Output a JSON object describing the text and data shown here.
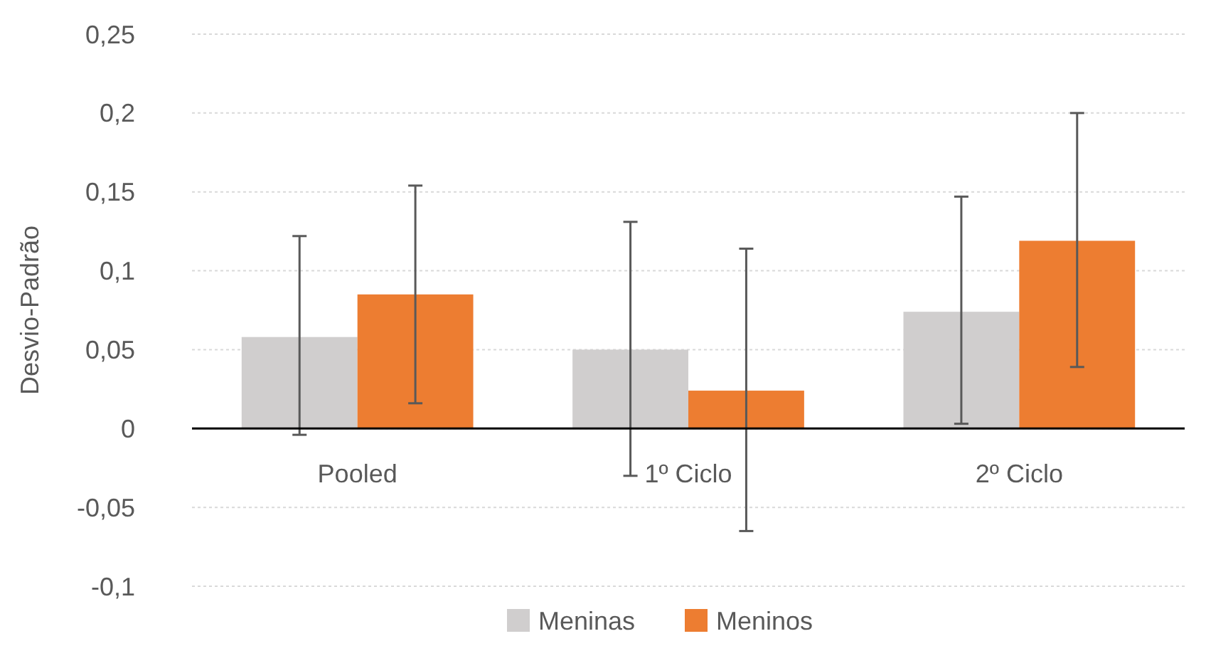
{
  "chart_data": {
    "type": "bar",
    "ylabel": "Desvio-Padrão",
    "categories": [
      "Pooled",
      "1º Ciclo",
      "2º Ciclo"
    ],
    "series": [
      {
        "name": "Meninas",
        "color": "#d0cece",
        "values": [
          0.058,
          0.05,
          0.074
        ],
        "errors": [
          [
            -0.004,
            0.122
          ],
          [
            -0.03,
            0.131
          ],
          [
            0.003,
            0.147
          ]
        ]
      },
      {
        "name": "Meninos",
        "color": "#ed7d31",
        "values": [
          0.085,
          0.024,
          0.119
        ],
        "errors": [
          [
            0.016,
            0.154
          ],
          [
            -0.065,
            0.114
          ],
          [
            0.039,
            0.2
          ]
        ]
      }
    ],
    "ylim": [
      -0.1,
      0.25
    ],
    "yticks": [
      {
        "value": -0.1,
        "label": "-0,1"
      },
      {
        "value": -0.05,
        "label": "-0,05"
      },
      {
        "value": 0,
        "label": "0"
      },
      {
        "value": 0.05,
        "label": "0,05"
      },
      {
        "value": 0.1,
        "label": "0,1"
      },
      {
        "value": 0.15,
        "label": "0,15"
      },
      {
        "value": 0.2,
        "label": "0,2"
      },
      {
        "value": 0.25,
        "label": "0,25"
      }
    ],
    "grid": "y",
    "legend": "bottom"
  }
}
